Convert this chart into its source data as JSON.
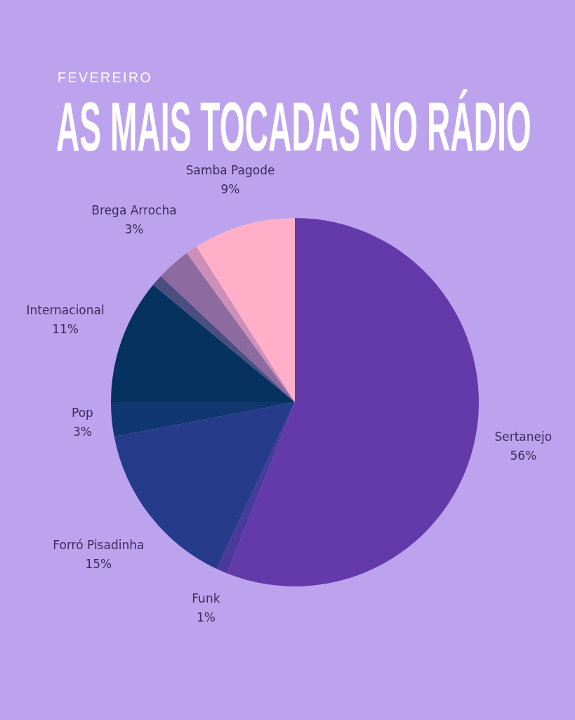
{
  "chart_data": {
    "type": "pie",
    "subtitle": "FEVEREIRO",
    "title": "AS MAIS TOCADAS NO RÁDIO",
    "categories": [
      "Sertanejo",
      "Funk",
      "Forró Pisadinha",
      "Pop",
      "Internacional",
      null,
      "Brega Arrocha",
      null,
      "Samba Pagode"
    ],
    "values": [
      56,
      1,
      15,
      3,
      11,
      1,
      3,
      1,
      9
    ],
    "value_labels": [
      "56%",
      "1%",
      "15%",
      "3%",
      "11%",
      null,
      "3%",
      null,
      "9%"
    ],
    "colors": [
      "#6439a9",
      "#4a3a9c",
      "#263c8a",
      "#10376f",
      "#05325f",
      "#4a4f80",
      "#8d6a9f",
      "#cc8fb8",
      "#ffb0c8"
    ]
  }
}
